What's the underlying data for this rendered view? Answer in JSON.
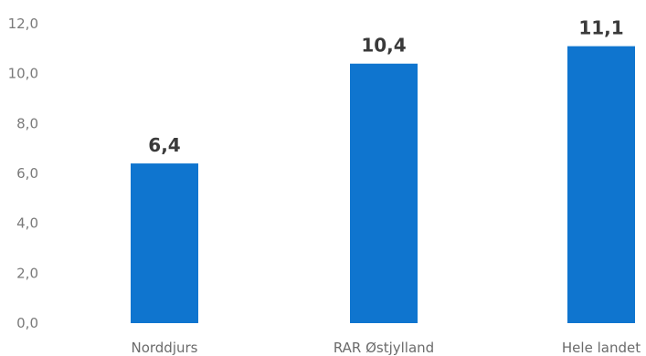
{
  "chart_data": {
    "type": "bar",
    "categories": [
      "Norddjurs",
      "RAR Østjylland",
      "Hele landet"
    ],
    "values": [
      6.4,
      10.4,
      11.1
    ],
    "value_labels": [
      "6,4",
      "10,4",
      "11,1"
    ],
    "yticks": [
      0,
      2,
      4,
      6,
      8,
      10,
      12
    ],
    "ytick_labels": [
      "0,0",
      "2,0",
      "4,0",
      "6,0",
      "8,0",
      "10,0",
      "12,0"
    ],
    "ylim": [
      0,
      12
    ],
    "grid": false,
    "legend": "none",
    "bar_color": "#0f75cf"
  }
}
